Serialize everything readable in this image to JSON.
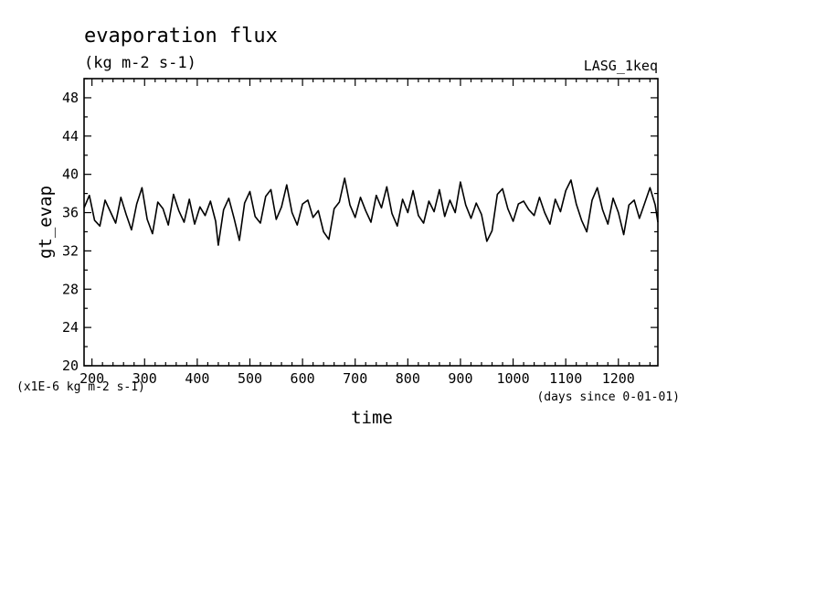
{
  "chart_data": {
    "type": "line",
    "title": "evaporation flux",
    "subtitle": "(kg m-2 s-1)",
    "dataset_label": "LASG_1keq",
    "xlabel": "time",
    "x_unit": "(days since 0-01-01)",
    "ylabel": "gt_evap",
    "y_unit": "(x1E-6 kg m-2 s-1)",
    "xlim": [
      185,
      1275
    ],
    "ylim": [
      20,
      50
    ],
    "x_ticks": [
      "200",
      "300",
      "400",
      "500",
      "600",
      "700",
      "800",
      "900",
      "1000",
      "1100",
      "1200"
    ],
    "y_ticks": [
      "20",
      "24",
      "28",
      "32",
      "36",
      "40",
      "44",
      "48"
    ],
    "grid": false,
    "legend": "none",
    "line_color": "#000000",
    "series": [
      {
        "x": [
          185,
          195,
          205,
          215,
          225,
          235,
          245,
          255,
          265,
          275,
          285,
          295,
          305,
          315,
          325,
          335,
          345,
          355,
          365,
          375,
          385,
          395,
          405,
          415,
          425,
          435,
          440,
          450,
          460,
          470,
          480,
          490,
          500,
          510,
          520,
          530,
          540,
          550,
          560,
          570,
          580,
          590,
          600,
          610,
          620,
          630,
          640,
          650,
          660,
          670,
          680,
          690,
          700,
          710,
          720,
          730,
          740,
          750,
          760,
          770,
          780,
          790,
          800,
          810,
          820,
          830,
          840,
          850,
          860,
          870,
          880,
          890,
          900,
          910,
          920,
          930,
          940,
          950,
          960,
          970,
          980,
          990,
          1000,
          1010,
          1020,
          1030,
          1040,
          1050,
          1060,
          1070,
          1080,
          1090,
          1100,
          1110,
          1120,
          1130,
          1140,
          1150,
          1160,
          1170,
          1180,
          1190,
          1200,
          1210,
          1220,
          1230,
          1240,
          1250,
          1260,
          1270,
          1275
        ],
        "values": [
          36.5,
          37.8,
          35.2,
          34.6,
          37.3,
          36.1,
          34.9,
          37.6,
          35.8,
          34.2,
          36.9,
          38.6,
          35.3,
          33.8,
          37.1,
          36.4,
          34.7,
          37.9,
          36.2,
          35.0,
          37.4,
          34.8,
          36.6,
          35.7,
          37.2,
          35.1,
          32.6,
          36.3,
          37.5,
          35.4,
          33.1,
          37.0,
          38.2,
          35.6,
          34.9,
          37.7,
          38.4,
          35.3,
          36.6,
          38.9,
          36.0,
          34.7,
          36.9,
          37.3,
          35.5,
          36.2,
          34.0,
          33.2,
          36.4,
          37.1,
          39.6,
          36.8,
          35.5,
          37.6,
          36.2,
          35.0,
          37.8,
          36.5,
          38.7,
          35.9,
          34.6,
          37.4,
          36.0,
          38.3,
          35.7,
          34.9,
          37.2,
          36.1,
          38.4,
          35.6,
          37.3,
          36.0,
          39.2,
          36.8,
          35.4,
          37.0,
          35.8,
          33.0,
          34.1,
          37.9,
          38.5,
          36.4,
          35.1,
          36.9,
          37.2,
          36.3,
          35.7,
          37.6,
          36.0,
          34.8,
          37.4,
          36.1,
          38.3,
          39.4,
          36.9,
          35.2,
          34.0,
          37.3,
          38.6,
          36.3,
          34.8,
          37.5,
          36.0,
          33.7,
          36.8,
          37.3,
          35.4,
          37.0,
          38.6,
          36.8,
          35.0
        ]
      }
    ]
  }
}
